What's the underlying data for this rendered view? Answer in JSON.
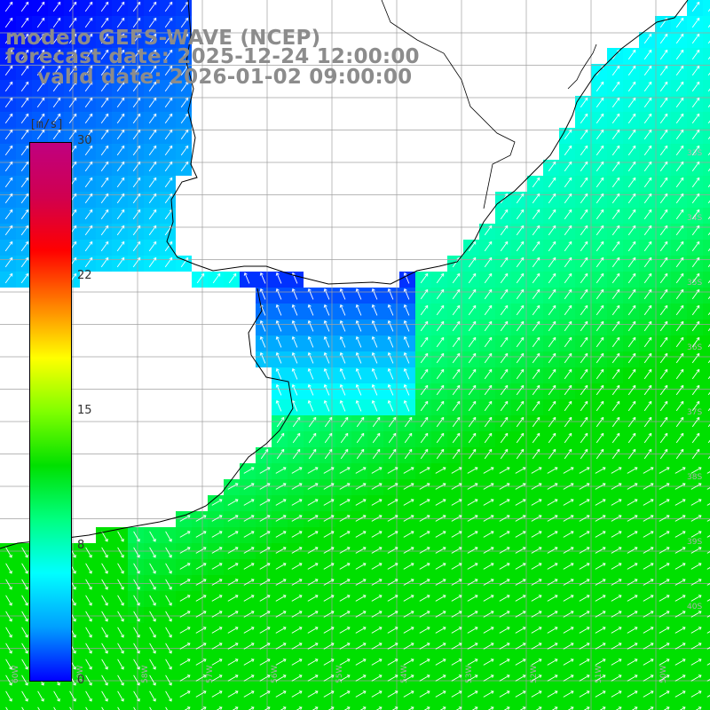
{
  "title": {
    "model": "modelo GEFS-WAVE (NCEP)",
    "forecast": "forecast date: 2025-12-24 12:00:00",
    "valid": "valid date: 2026-01-02 09:00:00"
  },
  "colorbar": {
    "unit": "[m/s]",
    "ticks": [
      "30",
      "22",
      "15",
      "8",
      "0"
    ],
    "colors": [
      "#0000ff",
      "#00a0ff",
      "#00ffff",
      "#00ff80",
      "#00e000",
      "#80ff00",
      "#ffff00",
      "#ff8000",
      "#ff0000",
      "#d00050",
      "#c00080"
    ]
  },
  "map": {
    "lat_labels": [
      "33S",
      "34S",
      "35S",
      "36S",
      "37S",
      "38S",
      "39S",
      "40S"
    ],
    "lon_labels": [
      "60W",
      "59W",
      "58W",
      "57W",
      "56W",
      "55W",
      "54W",
      "53W",
      "52W",
      "51W",
      "50W"
    ],
    "legend_colors": {
      "land": "#ffffff",
      "grid": "#a0a0a0",
      "arrow": "#ffffff",
      "coast": "#000000"
    }
  }
}
